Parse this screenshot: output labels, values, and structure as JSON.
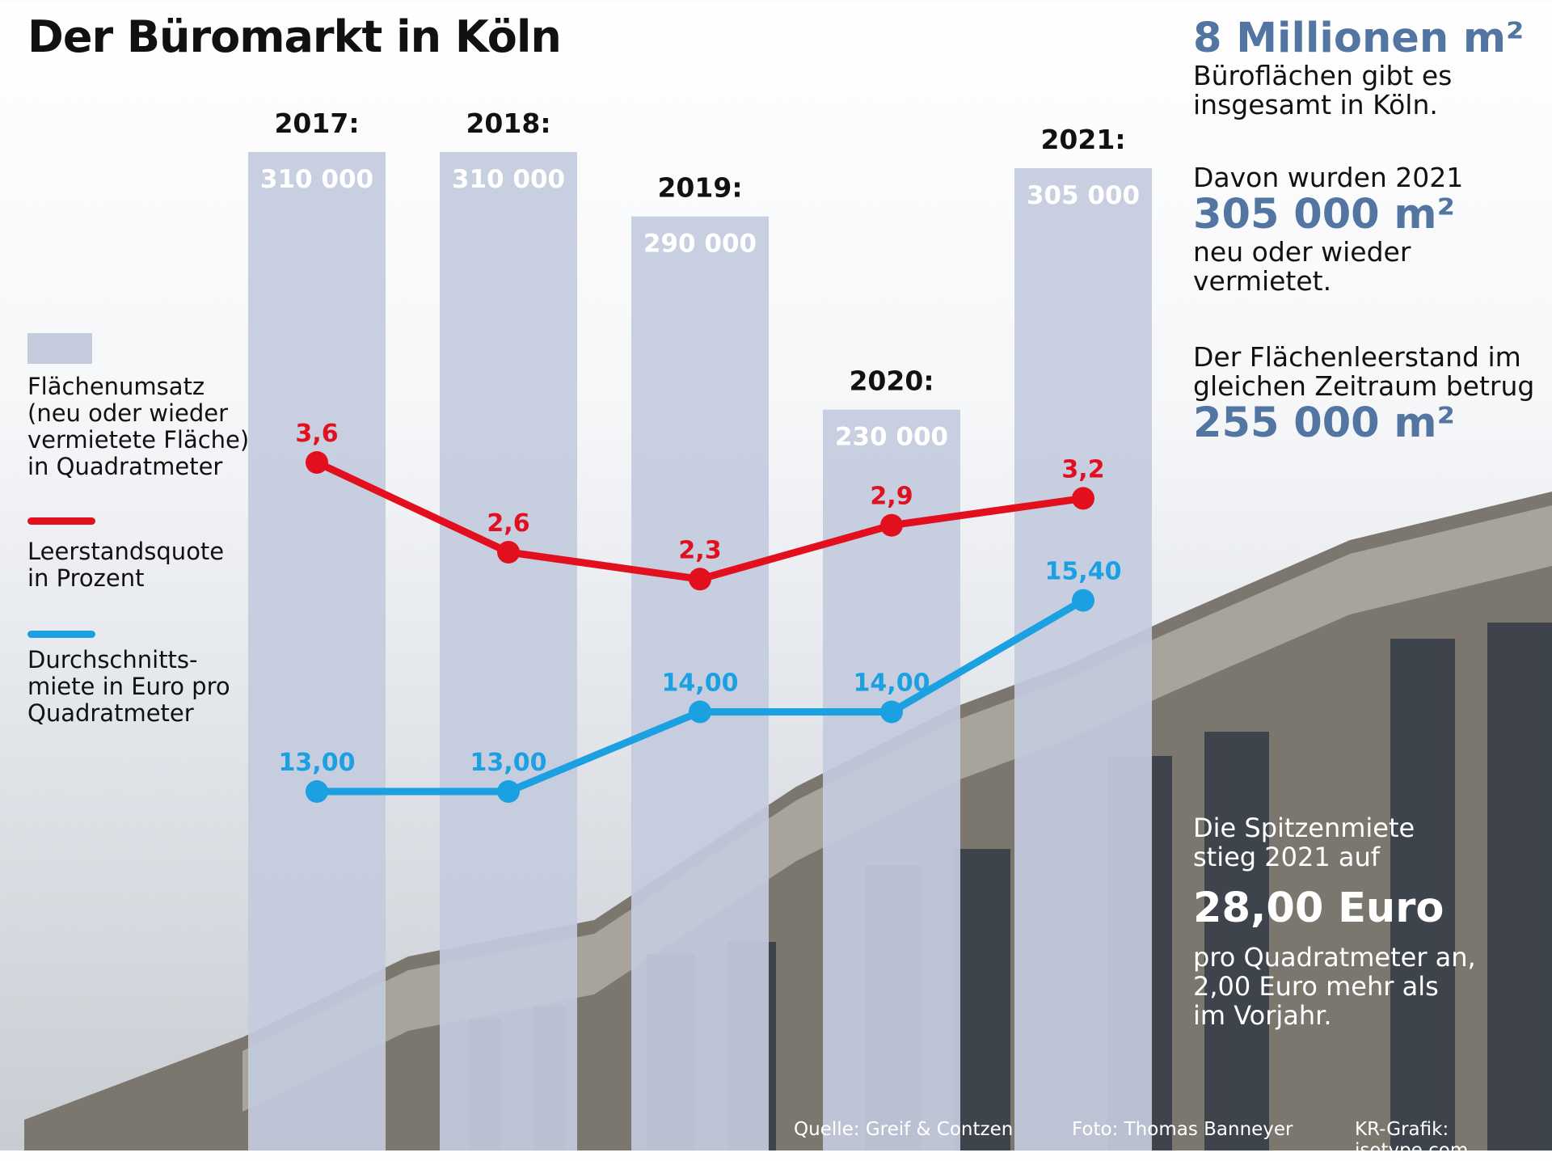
{
  "title": "Der Büromarkt in Köln",
  "colors": {
    "bar": "#c3cbdd",
    "vacancy_line": "#e2101f",
    "rent_line": "#1ba0e2",
    "highlight_text": "#5276a1"
  },
  "legend": {
    "bars": [
      "Flächenumsatz",
      "(neu oder wieder",
      "vermietete Fläche)",
      "in Quadratmeter"
    ],
    "vacancy": [
      "Leerstandsquote",
      "in Prozent"
    ],
    "rent": [
      "Durchschnitts-",
      "miete in Euro pro",
      "Quadratmeter"
    ]
  },
  "chart_data": {
    "type": "bar",
    "categories": [
      "2017:",
      "2018:",
      "2019:",
      "2020:",
      "2021:"
    ],
    "series": [
      {
        "type": "bar",
        "values": [
          310000,
          310000,
          290000,
          230000,
          305000
        ],
        "value_labels": [
          "310 000",
          "310 000",
          "290 000",
          "230 000",
          "305 000"
        ],
        "color": "#c3cbdd"
      },
      {
        "type": "line",
        "values": [
          3.6,
          2.6,
          2.3,
          2.9,
          3.2
        ],
        "value_labels": [
          "3,6",
          "2,6",
          "2,3",
          "2,9",
          "3,2"
        ],
        "color": "#e2101f"
      },
      {
        "type": "line",
        "values": [
          13.0,
          13.0,
          14.0,
          14.0,
          15.4
        ],
        "value_labels": [
          "13,00",
          "13,00",
          "14,00",
          "14,00",
          "15,40"
        ],
        "color": "#1ba0e2"
      }
    ],
    "axes_shown": false,
    "grid": false,
    "legend_position": "left"
  },
  "facts": {
    "total_area": "8 Millionen m²",
    "total_area_text": [
      "Büroflächen gibt es",
      "insgesamt in Köln."
    ],
    "rented_intro": "Davon wurden 2021",
    "rented_value": "305 000 m²",
    "rented_text": [
      "neu oder wieder",
      "vermietet."
    ],
    "vacancy_intro": [
      "Der Flächenleerstand im",
      "gleichen Zeitraum betrug"
    ],
    "vacancy_value": "255 000 m²"
  },
  "callout": {
    "intro": [
      "Die Spitzenmiete",
      "stieg 2021 auf"
    ],
    "value": "28,00 Euro",
    "text": [
      "pro Quadratmeter an,",
      "2,00 Euro mehr als",
      "im Vorjahr."
    ]
  },
  "credits": {
    "source": "Quelle: Greif & Contzen",
    "photo": "Foto: Thomas Banneyer",
    "graphic": "KR-Grafik: isotype.com"
  }
}
